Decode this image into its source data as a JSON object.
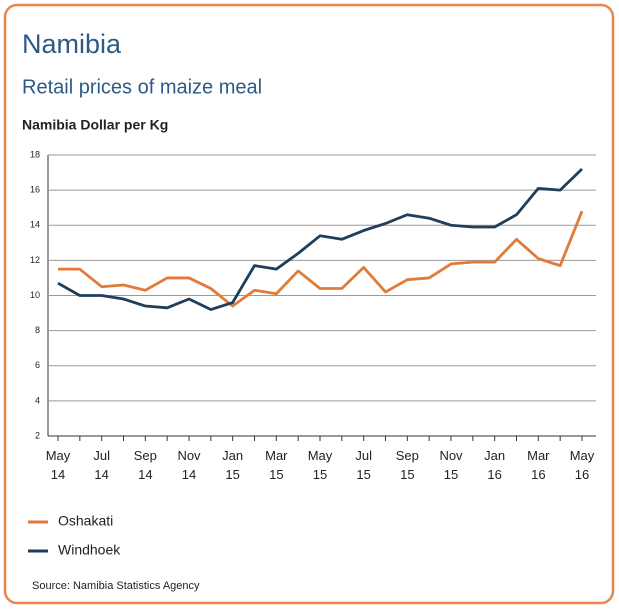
{
  "chart_data": {
    "type": "line",
    "title": "Namibia",
    "subtitle": "Retail prices of maize meal",
    "y_axis_label": "Namibia Dollar per Kg",
    "source": "Source: Namibia Statistics Agency",
    "categories": [
      "May 14",
      null,
      "Jul 14",
      null,
      "Sep 14",
      null,
      "Nov 14",
      null,
      "Jan 15",
      null,
      "Mar 15",
      null,
      "May 15",
      null,
      "Jul 15",
      null,
      "Sep 15",
      null,
      "Nov 15",
      null,
      "Jan 16",
      null,
      "Mar 16",
      null,
      "May 16"
    ],
    "series": [
      {
        "name": "Oshakati",
        "color": "#e07b39",
        "values": [
          11.5,
          11.5,
          10.5,
          10.6,
          10.3,
          11.0,
          11.0,
          10.4,
          9.4,
          10.3,
          10.1,
          11.4,
          10.4,
          10.4,
          11.6,
          10.2,
          10.9,
          11.0,
          11.8,
          11.9,
          11.9,
          13.2,
          12.1,
          11.7,
          14.8
        ]
      },
      {
        "name": "Windhoek",
        "color": "#1f3e5a",
        "values": [
          10.7,
          10.0,
          10.0,
          9.8,
          9.4,
          9.3,
          9.8,
          9.2,
          9.6,
          11.7,
          11.5,
          12.4,
          13.4,
          13.2,
          13.7,
          14.1,
          14.6,
          14.4,
          14.0,
          13.9,
          13.9,
          14.6,
          16.1,
          16.0,
          17.2
        ]
      }
    ],
    "ylim": [
      2,
      18
    ],
    "yticks": [
      2,
      4,
      6,
      8,
      10,
      12,
      14,
      16,
      18
    ],
    "grid": true
  }
}
